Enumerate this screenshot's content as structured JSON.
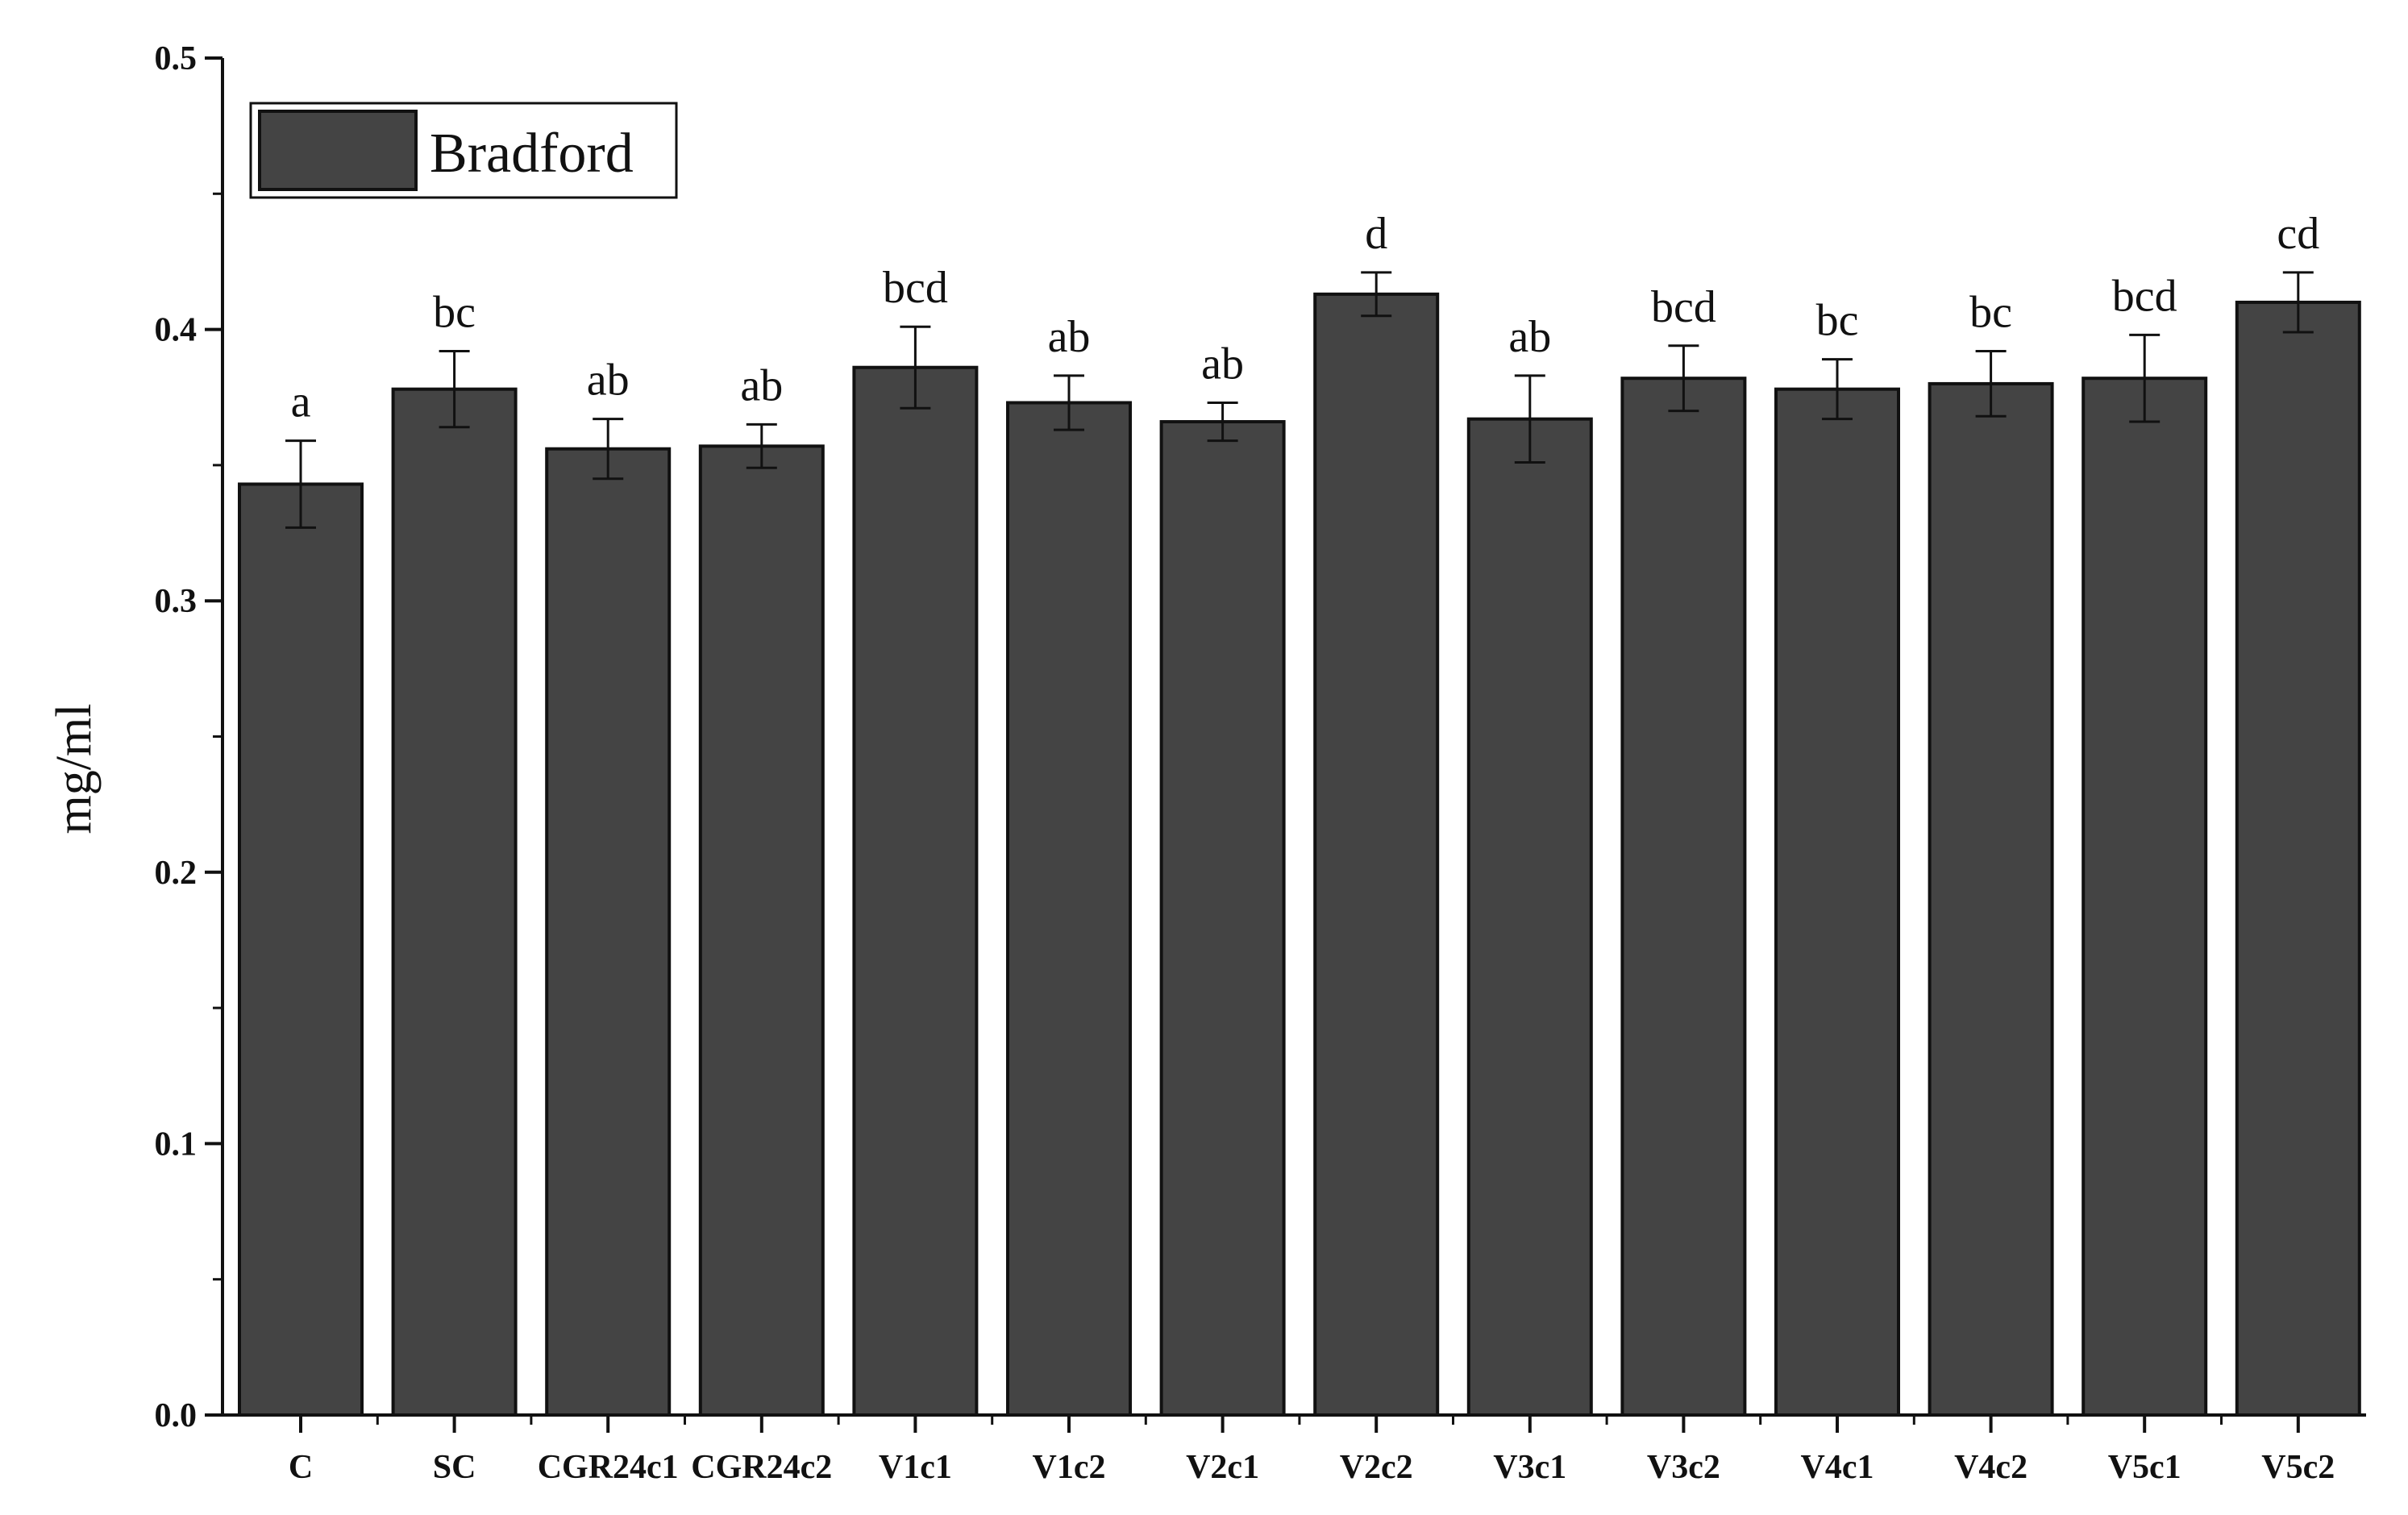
{
  "chart_data": {
    "type": "bar",
    "categories": [
      "C",
      "SC",
      "CGR24c1",
      "CGR24c2",
      "V1c1",
      "V1c2",
      "V2c1",
      "V2c2",
      "V3c1",
      "V3c2",
      "V4c1",
      "V4c2",
      "V5c1",
      "V5c2"
    ],
    "series": [
      {
        "name": "Bradford",
        "values": [
          0.343,
          0.378,
          0.356,
          0.357,
          0.386,
          0.373,
          0.366,
          0.413,
          0.367,
          0.382,
          0.378,
          0.38,
          0.382,
          0.41
        ],
        "errors": [
          0.016,
          0.014,
          0.011,
          0.008,
          0.015,
          0.01,
          0.007,
          0.008,
          0.016,
          0.012,
          0.011,
          0.012,
          0.016,
          0.011
        ],
        "color": "#444444"
      }
    ],
    "significance": [
      "a",
      "bc",
      "ab",
      "ab",
      "bcd",
      "ab",
      "ab",
      "d",
      "ab",
      "bcd",
      "bc",
      "bc",
      "bcd",
      "cd"
    ],
    "title": "",
    "xlabel": "",
    "ylabel": "mg/ml",
    "ylim": [
      0.0,
      0.5
    ],
    "yticks": [
      "0.0",
      "0.1",
      "0.2",
      "0.3",
      "0.4",
      "0.5"
    ],
    "grid": false,
    "legend": "top-left"
  }
}
